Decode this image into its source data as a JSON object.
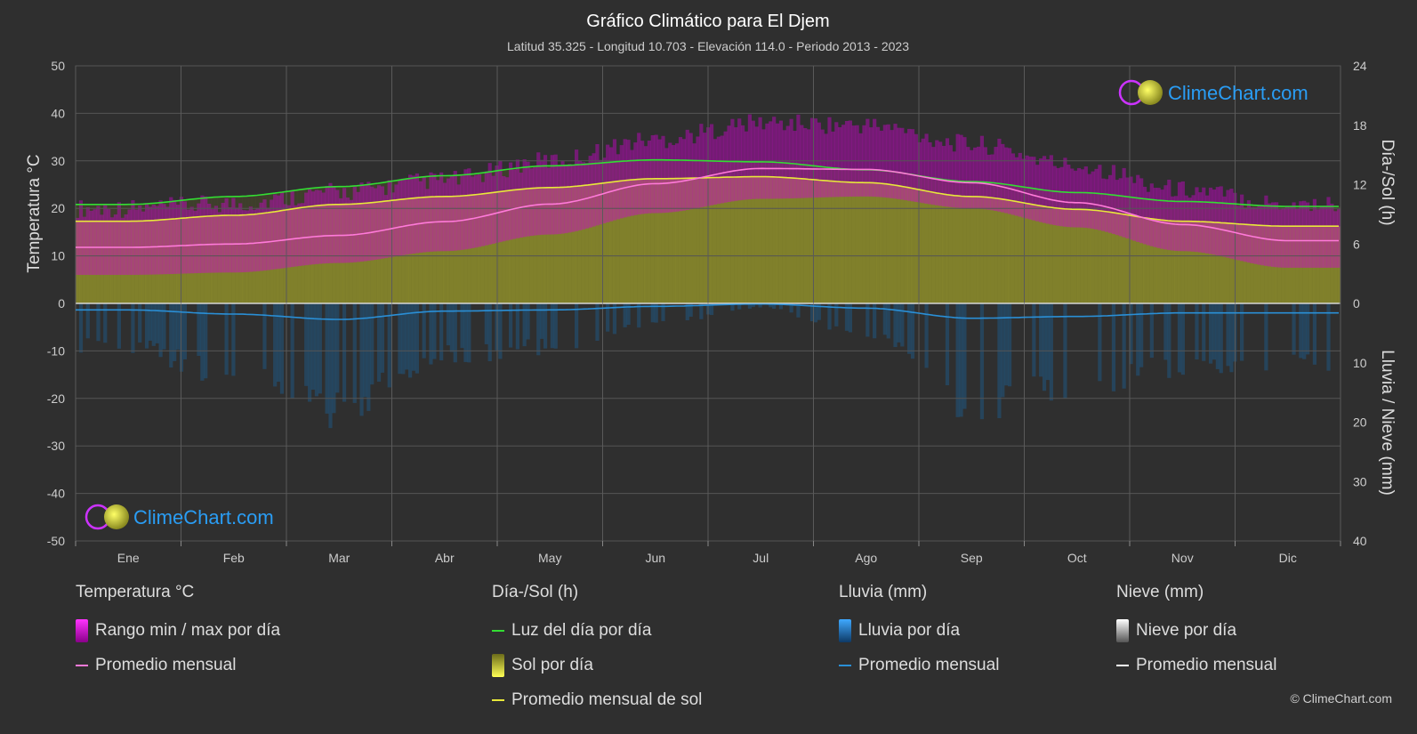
{
  "header": {
    "title": "Gráfico Climático para El Djem",
    "subtitle": "Latitud 35.325 - Longitud 10.703 - Elevación 114.0 - Periodo 2013 - 2023"
  },
  "logo": {
    "text": "ClimeChart.com"
  },
  "copyright": "© ClimeChart.com",
  "colors": {
    "background": "#2f2f2f",
    "temp_range": "#d400d4",
    "temp_avg": "#ff7ad9",
    "daylight": "#33dd33",
    "sunshine": "#b8b832",
    "sunshine_avg": "#e8e83a",
    "rain": "#2a8fd6",
    "rain_avg": "#2a8fd6",
    "snow": "#ffffff",
    "logo_blue": "#2a9df4"
  },
  "legend": {
    "temperature": {
      "title": "Temperatura °C",
      "items": [
        {
          "label": "Rango min / max por día",
          "symbol": "temp-range"
        },
        {
          "label": "Promedio mensual",
          "symbol": "temp-avg"
        }
      ]
    },
    "sun": {
      "title": "Día-/Sol (h)",
      "items": [
        {
          "label": "Luz del día por día",
          "symbol": "daylight"
        },
        {
          "label": "Sol por día",
          "symbol": "sunshine"
        },
        {
          "label": "Promedio mensual de sol",
          "symbol": "sunshine-avg"
        }
      ]
    },
    "rain": {
      "title": "Lluvia (mm)",
      "items": [
        {
          "label": "Lluvia por día",
          "symbol": "rain"
        },
        {
          "label": "Promedio mensual",
          "symbol": "rain-avg"
        }
      ]
    },
    "snow": {
      "title": "Nieve (mm)",
      "items": [
        {
          "label": "Nieve por día",
          "symbol": "snow"
        },
        {
          "label": "Promedio mensual",
          "symbol": "snow-avg"
        }
      ]
    }
  },
  "chart_data": {
    "type": "area",
    "x_categories": [
      "Ene",
      "Feb",
      "Mar",
      "Abr",
      "May",
      "Jun",
      "Jul",
      "Ago",
      "Sep",
      "Oct",
      "Nov",
      "Dic"
    ],
    "axes": {
      "y_left": {
        "label": "Temperatura °C",
        "range": [
          -50,
          50
        ],
        "ticks": [
          50,
          40,
          30,
          20,
          10,
          0,
          -10,
          -20,
          -30,
          -40,
          -50
        ]
      },
      "y_right_top": {
        "label": "Día-/Sol (h)",
        "range": [
          0,
          24
        ],
        "ticks": [
          24,
          18,
          12,
          6,
          0
        ]
      },
      "y_right_bottom": {
        "label": "Lluvia / Nieve (mm)",
        "range": [
          0,
          40
        ],
        "ticks": [
          0,
          10,
          20,
          30,
          40
        ]
      }
    },
    "grid": true,
    "series": [
      {
        "name": "Promedio mensual",
        "group": "Temperatura °C",
        "unit": "°C",
        "values": [
          11.8,
          12.5,
          14.3,
          17.2,
          20.9,
          25.2,
          28.4,
          28.2,
          25.4,
          21.2,
          16.6,
          13.2
        ]
      },
      {
        "name": "Rango min / max por día",
        "group": "Temperatura °C",
        "unit": "°C",
        "min": [
          6,
          6.5,
          8.5,
          11,
          14.5,
          19,
          22,
          22.5,
          20,
          16,
          11,
          7.5
        ],
        "max": [
          18,
          19,
          21.5,
          24,
          28,
          32.5,
          36,
          35.5,
          31.5,
          27,
          22,
          19
        ]
      },
      {
        "name": "Luz del día por día",
        "group": "Día-/Sol (h)",
        "unit": "h",
        "values": [
          10.0,
          10.8,
          11.8,
          12.9,
          13.9,
          14.5,
          14.3,
          13.5,
          12.3,
          11.2,
          10.3,
          9.8
        ]
      },
      {
        "name": "Promedio mensual de sol",
        "group": "Día-/Sol (h)",
        "unit": "h",
        "values": [
          8.3,
          8.9,
          10.0,
          10.8,
          11.7,
          12.6,
          12.8,
          12.2,
          10.8,
          9.5,
          8.3,
          7.8
        ]
      },
      {
        "name": "Promedio mensual",
        "group": "Lluvia (mm)",
        "unit": "mm",
        "values": [
          1.1,
          1.8,
          2.7,
          1.3,
          1.1,
          0.5,
          0.1,
          0.8,
          2.5,
          2.2,
          1.6,
          1.6
        ]
      },
      {
        "name": "Promedio mensual",
        "group": "Nieve (mm)",
        "unit": "mm",
        "values": [
          0,
          0,
          0,
          0,
          0,
          0,
          0,
          0,
          0,
          0,
          0,
          0
        ]
      }
    ]
  }
}
